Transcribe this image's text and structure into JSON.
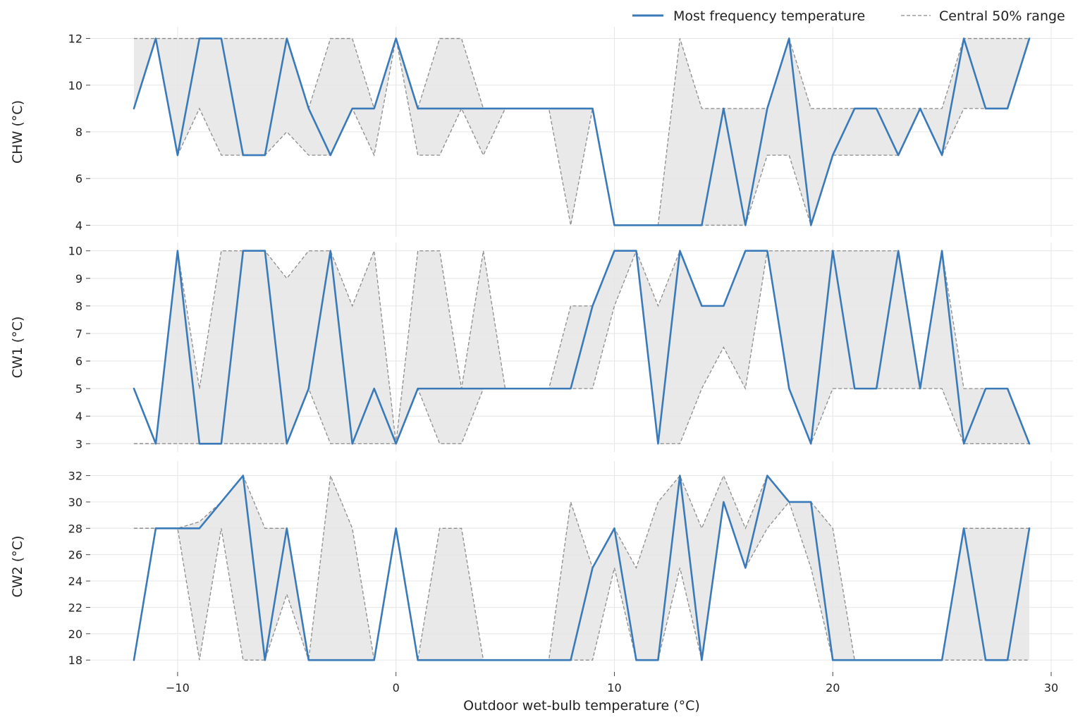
{
  "chart_data": {
    "type": "line",
    "xlabel": "Outdoor wet-bulb temperature (°C)",
    "xlim": [
      -14,
      31
    ],
    "xticks": [
      -10,
      0,
      10,
      20,
      30
    ],
    "xtick_labels": [
      "−10",
      "0",
      "10",
      "20",
      "30"
    ],
    "x": [
      -12,
      -11,
      -10,
      -9,
      -8,
      -7,
      -6,
      -5,
      -4,
      -3,
      -2,
      -1,
      0,
      1,
      2,
      3,
      4,
      5,
      6,
      7,
      8,
      9,
      10,
      11,
      12,
      13,
      14,
      15,
      16,
      17,
      18,
      19,
      20,
      21,
      22,
      23,
      24,
      25,
      26,
      27,
      28,
      29
    ],
    "legend": {
      "position": "top-right",
      "line_label": "Most frequency temperature",
      "range_label": "Central 50% range"
    },
    "colors": {
      "line": "#3a7ab8",
      "band": "#e5e5e5",
      "bound": "#8c8c8c",
      "grid": "#e6e6e6"
    },
    "panels": [
      {
        "ylabel": "CHW (°C)",
        "ylim": [
          3.5,
          12.5
        ],
        "yticks": [
          4,
          6,
          8,
          10,
          12
        ],
        "main": [
          9,
          12,
          7,
          12,
          12,
          7,
          7,
          12,
          9,
          7,
          9,
          9,
          12,
          9,
          9,
          9,
          9,
          9,
          9,
          9,
          9,
          9,
          4,
          4,
          4,
          4,
          4,
          9,
          4,
          9,
          12,
          4,
          7,
          9,
          9,
          7,
          9,
          7,
          12,
          9,
          9,
          12
        ],
        "upper": [
          12,
          12,
          12,
          12,
          12,
          12,
          12,
          12,
          9,
          12,
          12,
          9,
          12,
          9,
          12,
          12,
          9,
          9,
          9,
          9,
          9,
          9,
          4,
          4,
          4,
          12,
          9,
          9,
          9,
          9,
          12,
          9,
          9,
          9,
          9,
          9,
          9,
          9,
          12,
          12,
          12,
          12
        ],
        "lower": [
          9,
          12,
          7,
          9,
          7,
          7,
          7,
          8,
          7,
          7,
          9,
          7,
          12,
          7,
          7,
          9,
          7,
          9,
          9,
          9,
          4,
          9,
          4,
          4,
          4,
          4,
          4,
          4,
          4,
          7,
          7,
          4,
          7,
          7,
          7,
          7,
          9,
          7,
          9,
          9,
          9,
          12
        ]
      },
      {
        "ylabel": "CW1 (°C)",
        "ylim": [
          2.7,
          10.3
        ],
        "yticks": [
          3,
          4,
          5,
          6,
          7,
          8,
          9,
          10
        ],
        "main": [
          5,
          3,
          10,
          3,
          3,
          10,
          10,
          3,
          5,
          10,
          3,
          5,
          3,
          5,
          5,
          5,
          5,
          5,
          5,
          5,
          5,
          8,
          10,
          10,
          3,
          10,
          8,
          8,
          10,
          10,
          5,
          3,
          10,
          5,
          5,
          10,
          5,
          10,
          3,
          5,
          5,
          3
        ],
        "upper": [
          3,
          3,
          10,
          5,
          10,
          10,
          10,
          9,
          10,
          10,
          8,
          10,
          3,
          10,
          10,
          5,
          10,
          5,
          5,
          5,
          8,
          8,
          10,
          10,
          8,
          10,
          8,
          8,
          10,
          10,
          10,
          10,
          10,
          10,
          10,
          10,
          5,
          10,
          5,
          5,
          5,
          3
        ],
        "lower": [
          3,
          3,
          3,
          3,
          3,
          3,
          3,
          3,
          5,
          3,
          3,
          3,
          3,
          5,
          3,
          3,
          5,
          5,
          5,
          5,
          5,
          5,
          8,
          10,
          3,
          3,
          5,
          6.5,
          5,
          10,
          5,
          3,
          5,
          5,
          5,
          5,
          5,
          5,
          3,
          3,
          3,
          3
        ]
      },
      {
        "ylabel": "CW2 (°C)",
        "ylim": [
          17.1,
          33.1
        ],
        "yticks": [
          18,
          20,
          22,
          24,
          26,
          28,
          30,
          32
        ],
        "main": [
          18,
          28,
          28,
          28,
          30,
          32,
          18,
          28,
          18,
          18,
          18,
          18,
          28,
          18,
          18,
          18,
          18,
          18,
          18,
          18,
          18,
          25,
          28,
          18,
          18,
          32,
          18,
          30,
          25,
          32,
          30,
          30,
          18,
          18,
          18,
          18,
          18,
          18,
          28,
          18,
          18,
          28
        ],
        "upper": [
          28,
          28,
          28,
          28.5,
          30,
          32,
          28,
          28,
          18,
          32,
          28,
          18,
          28,
          18,
          28,
          28,
          18,
          18,
          18,
          18,
          30,
          25,
          28,
          25,
          30,
          32,
          28,
          32,
          28,
          32,
          30,
          30,
          28,
          18,
          18,
          18,
          18,
          18,
          28,
          28,
          28,
          28
        ],
        "lower": [
          28,
          28,
          28,
          18,
          28,
          18,
          18,
          23,
          18,
          18,
          18,
          18,
          28,
          18,
          18,
          18,
          18,
          18,
          18,
          18,
          18,
          18,
          25,
          18,
          18,
          25,
          18,
          30,
          25,
          28,
          30,
          25,
          18,
          18,
          18,
          18,
          18,
          18,
          18,
          18,
          18,
          18
        ]
      }
    ]
  }
}
